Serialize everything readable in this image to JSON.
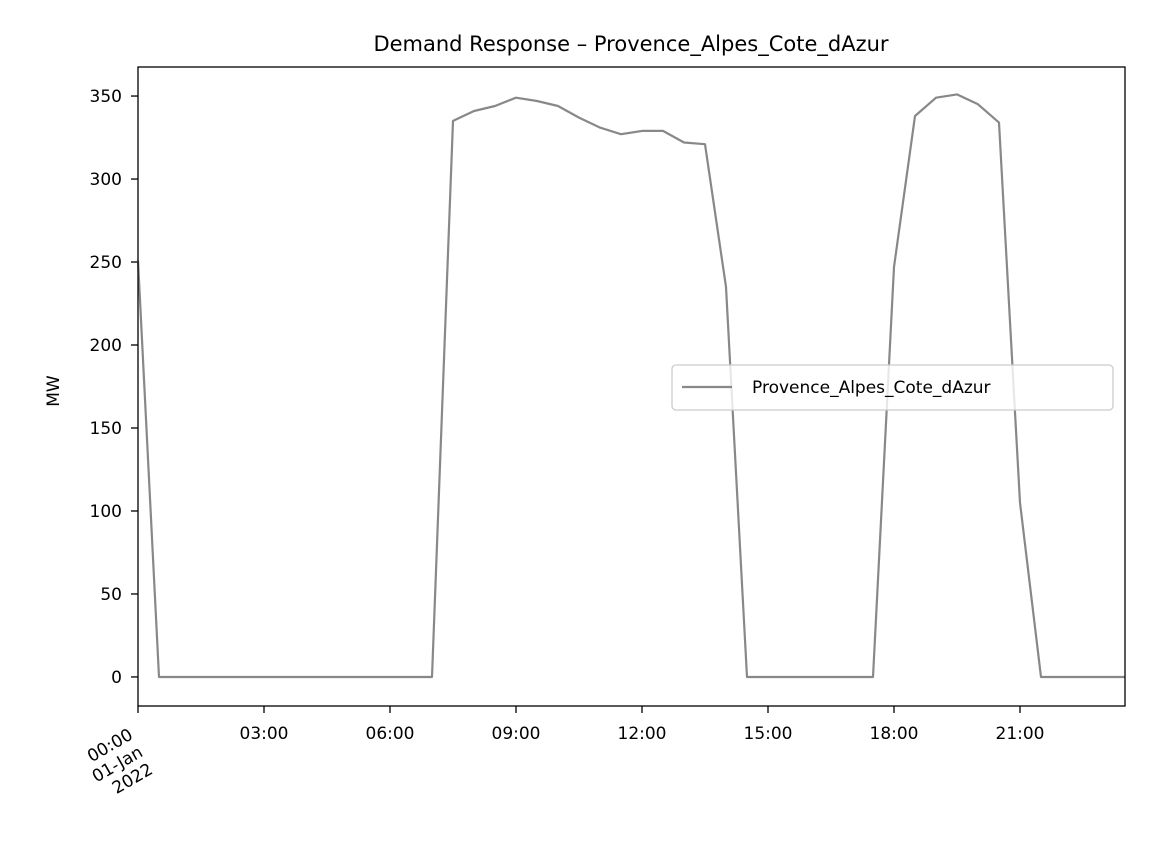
{
  "chart_data": {
    "type": "line",
    "title": "Demand Response – Provence_Alpes_Cote_dAzur",
    "xlabel": "",
    "ylabel": "MW",
    "xlim": [
      "2022-01-01 00:00",
      "2022-01-01 23:30"
    ],
    "ylim": [
      -17.5,
      367.5
    ],
    "x_ticks": [
      {
        "x": "2022-01-01 00:00",
        "lines": [
          "00:00",
          "01-Jan",
          "2022"
        ]
      },
      {
        "x": "2022-01-01 03:00",
        "lines": [
          "03:00"
        ]
      },
      {
        "x": "2022-01-01 06:00",
        "lines": [
          "06:00"
        ]
      },
      {
        "x": "2022-01-01 09:00",
        "lines": [
          "09:00"
        ]
      },
      {
        "x": "2022-01-01 12:00",
        "lines": [
          "12:00"
        ]
      },
      {
        "x": "2022-01-01 15:00",
        "lines": [
          "15:00"
        ]
      },
      {
        "x": "2022-01-01 18:00",
        "lines": [
          "18:00"
        ]
      },
      {
        "x": "2022-01-01 21:00",
        "lines": [
          "21:00"
        ]
      }
    ],
    "y_ticks": [
      0,
      50,
      100,
      150,
      200,
      250,
      300,
      350
    ],
    "legend_position": "center-right",
    "grid": false,
    "series": [
      {
        "name": "Provence_Alpes_Cote_dAzur",
        "color": "#888888",
        "points": [
          [
            "2022-01-01 00:00",
            251
          ],
          [
            "2022-01-01 00:30",
            0
          ],
          [
            "2022-01-01 07:00",
            0
          ],
          [
            "2022-01-01 07:30",
            335
          ],
          [
            "2022-01-01 08:00",
            341
          ],
          [
            "2022-01-01 08:30",
            344
          ],
          [
            "2022-01-01 09:00",
            349
          ],
          [
            "2022-01-01 09:30",
            347
          ],
          [
            "2022-01-01 10:00",
            344
          ],
          [
            "2022-01-01 10:30",
            337
          ],
          [
            "2022-01-01 11:00",
            331
          ],
          [
            "2022-01-01 11:30",
            327
          ],
          [
            "2022-01-01 12:00",
            329
          ],
          [
            "2022-01-01 12:30",
            329
          ],
          [
            "2022-01-01 13:00",
            322
          ],
          [
            "2022-01-01 13:30",
            321
          ],
          [
            "2022-01-01 14:00",
            235
          ],
          [
            "2022-01-01 14:30",
            0
          ],
          [
            "2022-01-01 17:30",
            0
          ],
          [
            "2022-01-01 18:00",
            247
          ],
          [
            "2022-01-01 18:30",
            338
          ],
          [
            "2022-01-01 19:00",
            349
          ],
          [
            "2022-01-01 19:30",
            351
          ],
          [
            "2022-01-01 20:00",
            345
          ],
          [
            "2022-01-01 20:30",
            334
          ],
          [
            "2022-01-01 21:00",
            105
          ],
          [
            "2022-01-01 21:30",
            0
          ],
          [
            "2022-01-01 23:30",
            0
          ]
        ]
      }
    ]
  }
}
